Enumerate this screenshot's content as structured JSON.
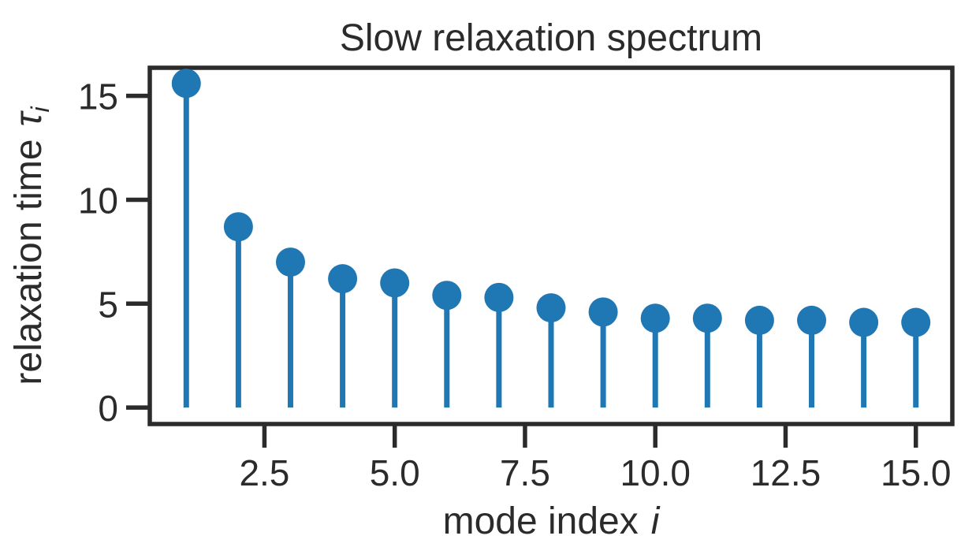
{
  "chart_data": {
    "type": "stem",
    "title": "Slow relaxation spectrum",
    "xlabel": "mode index",
    "xlabel_var": "i",
    "ylabel": "relaxation time",
    "ylabel_var": "τ",
    "ylabel_sub": "i",
    "x": [
      1,
      2,
      3,
      4,
      5,
      6,
      7,
      8,
      9,
      10,
      11,
      12,
      13,
      14,
      15
    ],
    "values": [
      15.6,
      8.7,
      7.0,
      6.2,
      6.0,
      5.4,
      5.3,
      4.8,
      4.6,
      4.3,
      4.3,
      4.2,
      4.2,
      4.1,
      4.1
    ],
    "xlim": [
      0.3,
      15.7
    ],
    "ylim": [
      -0.79,
      16.35
    ],
    "xticks": [
      2.5,
      5.0,
      7.5,
      10.0,
      12.5,
      15.0
    ],
    "xtick_labels": [
      "2.5",
      "5.0",
      "7.5",
      "10.0",
      "12.5",
      "15.0"
    ],
    "yticks": [
      0,
      5,
      10,
      15
    ],
    "ytick_labels": [
      "0",
      "5",
      "10",
      "15"
    ],
    "grid": false,
    "legend": null,
    "colors": {
      "stem": "#1f77b4",
      "axes": "#2b2b2b",
      "background": "#ffffff"
    }
  }
}
